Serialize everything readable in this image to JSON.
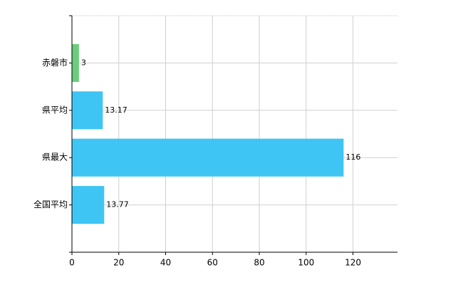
{
  "chart_data": {
    "type": "hbar",
    "categories": [
      "赤磐市",
      "県平均",
      "県最大",
      "全国平均"
    ],
    "values": [
      3,
      13.17,
      116,
      13.77
    ],
    "colors": [
      "#6acd7c",
      "#3fc5f4",
      "#3fc5f4",
      "#3fc5f4"
    ],
    "xlim": [
      0,
      139
    ],
    "xticks": [
      0,
      20,
      40,
      60,
      80,
      100,
      120
    ],
    "grid": true
  }
}
